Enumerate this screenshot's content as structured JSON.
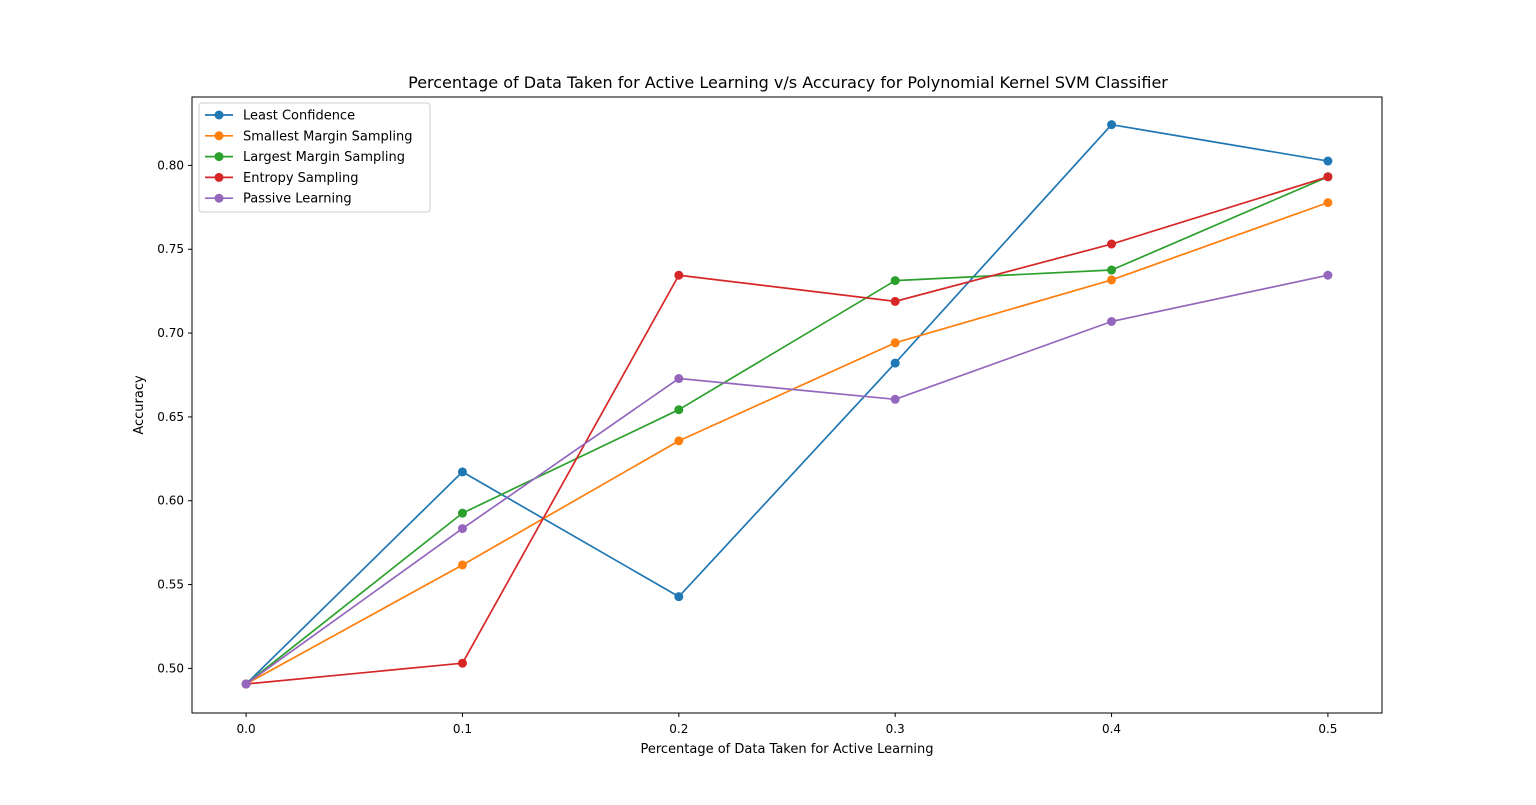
{
  "chart_data": {
    "type": "line",
    "title": "Percentage of Data Taken for Active Learning v/s Accuracy for Polynomial Kernel SVM Classifier",
    "xlabel": "Percentage of Data Taken for Active Learning",
    "ylabel": "Accuracy",
    "x": [
      0.0,
      0.1,
      0.2,
      0.3,
      0.4,
      0.5
    ],
    "x_ticks": [
      "0.0",
      "0.1",
      "0.2",
      "0.3",
      "0.4",
      "0.5"
    ],
    "y_ticks": [
      "0.50",
      "0.55",
      "0.60",
      "0.65",
      "0.70",
      "0.75",
      "0.80"
    ],
    "xlim": [
      -0.025,
      0.525
    ],
    "ylim": [
      0.4734,
      0.8408
    ],
    "grid": false,
    "legend_position": "top-left",
    "series": [
      {
        "name": "Least Confidence",
        "color": "#1f77b4",
        "values": [
          0.4907,
          0.6172,
          0.5428,
          0.6821,
          0.8243,
          0.8026
        ]
      },
      {
        "name": "Smallest Margin Sampling",
        "color": "#ff7f0e",
        "values": [
          0.4907,
          0.5617,
          0.6357,
          0.6942,
          0.7317,
          0.7778
        ]
      },
      {
        "name": "Largest Margin Sampling",
        "color": "#2ca02c",
        "values": [
          0.4907,
          0.5926,
          0.6543,
          0.7313,
          0.7376,
          0.7932
        ]
      },
      {
        "name": "Entropy Sampling",
        "color": "#d62728",
        "values": [
          0.4907,
          0.5031,
          0.7345,
          0.7189,
          0.7531,
          0.7932
        ]
      },
      {
        "name": "Passive Learning",
        "color": "#9467bd",
        "values": [
          0.4907,
          0.5834,
          0.6729,
          0.6605,
          0.7069,
          0.7345
        ]
      }
    ]
  }
}
